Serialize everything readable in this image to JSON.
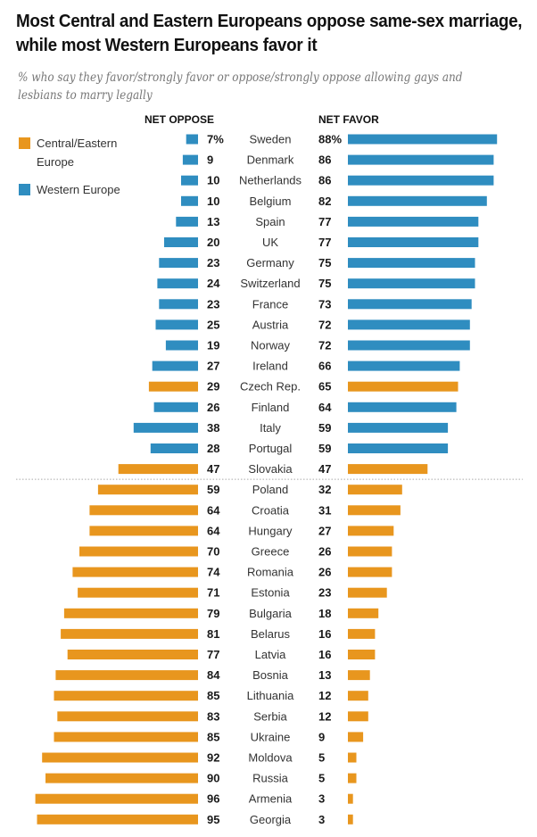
{
  "chart_data": {
    "type": "bar",
    "title": "Most Central and Eastern Europeans oppose same-sex marriage, while most Western Europeans favor it",
    "subtitle": "% who say they favor/strongly favor or oppose/strongly oppose allowing gays and lesbians to marry legally",
    "left_header": "NET OPPOSE",
    "right_header": "NET FAVOR",
    "legend": [
      {
        "key": "CEE",
        "label": "Central/Eastern Europe",
        "color": "#E8961E"
      },
      {
        "key": "WE",
        "label": "Western Europe",
        "color": "#2F8DC0"
      }
    ],
    "xlim": [
      0,
      100
    ],
    "divider_after": "Slovakia",
    "series": [
      {
        "name": "Net oppose",
        "side": "left"
      },
      {
        "name": "Net favor",
        "side": "right"
      }
    ],
    "rows": [
      {
        "country": "Sweden",
        "region": "WE",
        "oppose": 7,
        "favor": 88,
        "oppose_label": "7%",
        "favor_label": "88%"
      },
      {
        "country": "Denmark",
        "region": "WE",
        "oppose": 9,
        "favor": 86
      },
      {
        "country": "Netherlands",
        "region": "WE",
        "oppose": 10,
        "favor": 86
      },
      {
        "country": "Belgium",
        "region": "WE",
        "oppose": 10,
        "favor": 82
      },
      {
        "country": "Spain",
        "region": "WE",
        "oppose": 13,
        "favor": 77
      },
      {
        "country": "UK",
        "region": "WE",
        "oppose": 20,
        "favor": 77
      },
      {
        "country": "Germany",
        "region": "WE",
        "oppose": 23,
        "favor": 75
      },
      {
        "country": "Switzerland",
        "region": "WE",
        "oppose": 24,
        "favor": 75
      },
      {
        "country": "France",
        "region": "WE",
        "oppose": 23,
        "favor": 73
      },
      {
        "country": "Austria",
        "region": "WE",
        "oppose": 25,
        "favor": 72
      },
      {
        "country": "Norway",
        "region": "WE",
        "oppose": 19,
        "favor": 72
      },
      {
        "country": "Ireland",
        "region": "WE",
        "oppose": 27,
        "favor": 66
      },
      {
        "country": "Czech Rep.",
        "region": "CEE",
        "oppose": 29,
        "favor": 65
      },
      {
        "country": "Finland",
        "region": "WE",
        "oppose": 26,
        "favor": 64
      },
      {
        "country": "Italy",
        "region": "WE",
        "oppose": 38,
        "favor": 59
      },
      {
        "country": "Portugal",
        "region": "WE",
        "oppose": 28,
        "favor": 59
      },
      {
        "country": "Slovakia",
        "region": "CEE",
        "oppose": 47,
        "favor": 47
      },
      {
        "country": "Poland",
        "region": "CEE",
        "oppose": 59,
        "favor": 32
      },
      {
        "country": "Croatia",
        "region": "CEE",
        "oppose": 64,
        "favor": 31
      },
      {
        "country": "Hungary",
        "region": "CEE",
        "oppose": 64,
        "favor": 27
      },
      {
        "country": "Greece",
        "region": "CEE",
        "oppose": 70,
        "favor": 26
      },
      {
        "country": "Romania",
        "region": "CEE",
        "oppose": 74,
        "favor": 26
      },
      {
        "country": "Estonia",
        "region": "CEE",
        "oppose": 71,
        "favor": 23
      },
      {
        "country": "Bulgaria",
        "region": "CEE",
        "oppose": 79,
        "favor": 18
      },
      {
        "country": "Belarus",
        "region": "CEE",
        "oppose": 81,
        "favor": 16
      },
      {
        "country": "Latvia",
        "region": "CEE",
        "oppose": 77,
        "favor": 16
      },
      {
        "country": "Bosnia",
        "region": "CEE",
        "oppose": 84,
        "favor": 13
      },
      {
        "country": "Lithuania",
        "region": "CEE",
        "oppose": 85,
        "favor": 12
      },
      {
        "country": "Serbia",
        "region": "CEE",
        "oppose": 83,
        "favor": 12
      },
      {
        "country": "Ukraine",
        "region": "CEE",
        "oppose": 85,
        "favor": 9
      },
      {
        "country": "Moldova",
        "region": "CEE",
        "oppose": 92,
        "favor": 5
      },
      {
        "country": "Russia",
        "region": "CEE",
        "oppose": 90,
        "favor": 5
      },
      {
        "country": "Armenia",
        "region": "CEE",
        "oppose": 96,
        "favor": 3
      },
      {
        "country": "Georgia",
        "region": "CEE",
        "oppose": 95,
        "favor": 3
      }
    ]
  }
}
